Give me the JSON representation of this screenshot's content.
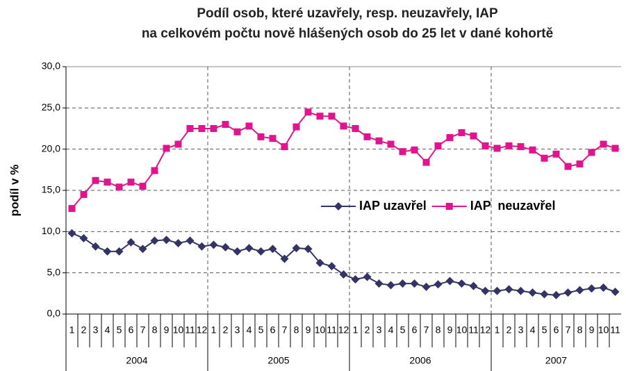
{
  "chart_data": {
    "type": "line",
    "title": "Podíl osob, které uzavřely, resp. neuzavřely, IAP",
    "subtitle": "na celkovém počtu nově hlášených osob do 25 let v dané kohortě",
    "y_label": "podíl v %",
    "categories": [
      "1",
      "2",
      "3",
      "4",
      "5",
      "6",
      "7",
      "8",
      "9",
      "10",
      "11",
      "12",
      "1",
      "2",
      "3",
      "4",
      "5",
      "6",
      "7",
      "8",
      "9",
      "10",
      "11",
      "12",
      "1",
      "2",
      "3",
      "4",
      "5",
      "6",
      "7",
      "8",
      "9",
      "10",
      "11",
      "12",
      "1",
      "2",
      "3",
      "4",
      "5",
      "6",
      "7",
      "8",
      "9",
      "10",
      "11"
    ],
    "years": [
      "2004",
      "2005",
      "2006",
      "2007"
    ],
    "series": [
      {
        "name": "IAP uzavřel",
        "color": "#333366",
        "marker": "diamond",
        "values": [
          9.8,
          9.2,
          8.2,
          7.6,
          7.6,
          8.7,
          7.9,
          8.9,
          9.0,
          8.6,
          8.9,
          8.2,
          8.4,
          8.1,
          7.6,
          8.0,
          7.6,
          7.9,
          6.7,
          8.0,
          7.9,
          6.2,
          5.8,
          4.8,
          4.2,
          4.5,
          3.7,
          3.5,
          3.7,
          3.7,
          3.3,
          3.6,
          4.0,
          3.7,
          3.4,
          2.8,
          2.8,
          3.0,
          2.8,
          2.6,
          2.4,
          2.3,
          2.6,
          2.9,
          3.1,
          3.2,
          2.7
        ]
      },
      {
        "name": "IAP  neuzavřel",
        "color": "#e0148c",
        "marker": "square",
        "values": [
          12.8,
          14.5,
          16.2,
          16.0,
          15.4,
          16.0,
          15.5,
          17.4,
          20.1,
          20.6,
          22.5,
          22.5,
          22.5,
          23.0,
          22.1,
          22.8,
          21.5,
          21.3,
          20.3,
          22.7,
          24.5,
          24.0,
          24.0,
          22.8,
          22.5,
          21.5,
          21.0,
          20.6,
          19.7,
          19.9,
          18.4,
          20.4,
          21.4,
          22.0,
          21.6,
          20.4,
          20.1,
          20.4,
          20.3,
          19.9,
          18.9,
          19.4,
          17.9,
          18.2,
          19.6,
          20.6,
          20.1
        ]
      }
    ],
    "ylim": [
      0,
      30
    ],
    "yticks": [
      {
        "value": 0,
        "label": "0,0"
      },
      {
        "value": 5,
        "label": "5,0"
      },
      {
        "value": 10,
        "label": "10,0"
      },
      {
        "value": 15,
        "label": "15,0"
      },
      {
        "value": 20,
        "label": "20,0"
      },
      {
        "value": 25,
        "label": "25,0"
      },
      {
        "value": 30,
        "label": "30,0"
      }
    ],
    "grid": true
  }
}
